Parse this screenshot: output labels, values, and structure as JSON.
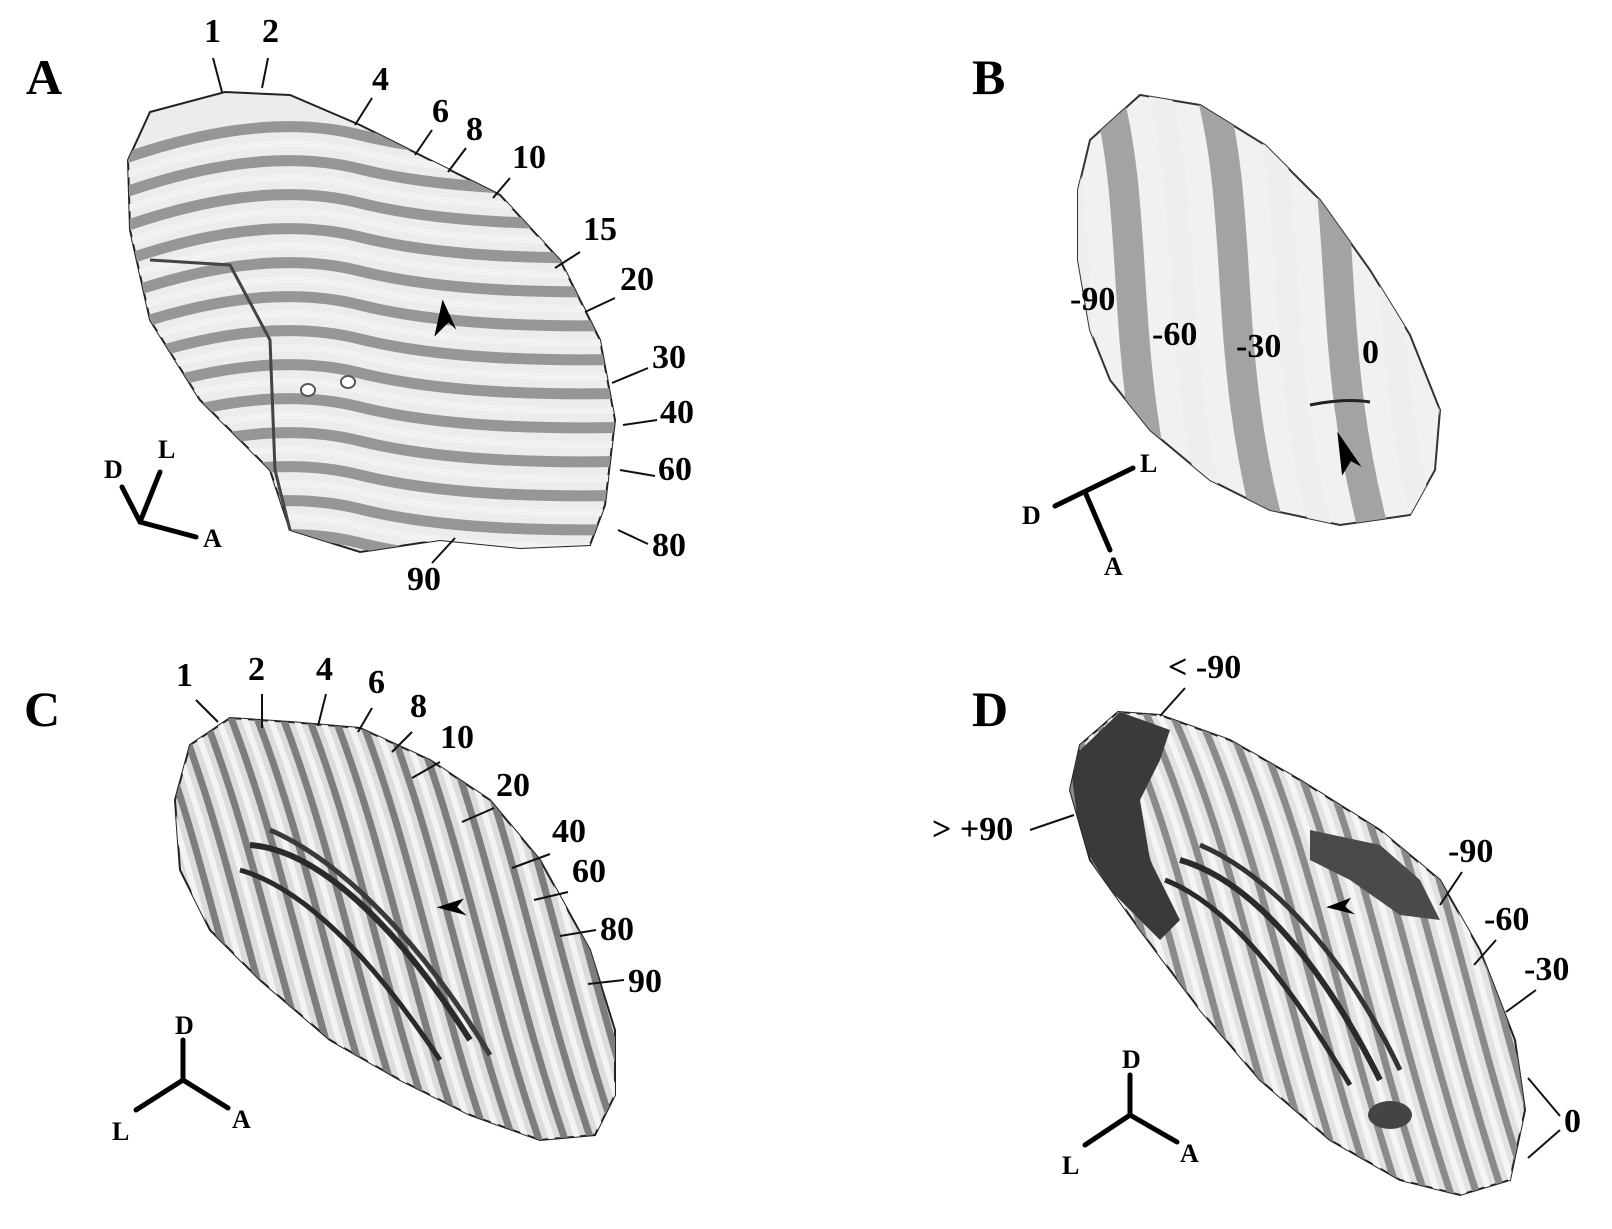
{
  "panels": [
    {
      "letter": "A",
      "contour_labels": [
        "1",
        "2",
        "4",
        "6",
        "8",
        "10",
        "15",
        "20",
        "30",
        "40",
        "60",
        "80",
        "90"
      ],
      "axes": {
        "d": "D",
        "l": "L",
        "a": "A"
      },
      "arrowhead": "arrowhead-icon"
    },
    {
      "letter": "B",
      "contour_labels": [
        "-90",
        "-60",
        "-30",
        "0"
      ],
      "axes": {
        "d": "D",
        "l": "L",
        "a": "A"
      },
      "arrowhead": "arrowhead-icon"
    },
    {
      "letter": "C",
      "contour_labels": [
        "1",
        "2",
        "4",
        "6",
        "8",
        "10",
        "20",
        "40",
        "60",
        "80",
        "90"
      ],
      "axes": {
        "d": "D",
        "l": "L",
        "a": "A"
      },
      "arrowhead": "arrowhead-icon"
    },
    {
      "letter": "D",
      "contour_labels": [
        "< -90",
        "> +90",
        "-90",
        "-60",
        "-30",
        "0"
      ],
      "axes": {
        "d": "D",
        "l": "L",
        "a": "A"
      },
      "arrowhead": "arrowhead-icon"
    }
  ],
  "colors": {
    "background": "#ffffff",
    "surface_light": "#e9e9e9",
    "surface_band": "#9a9a9a",
    "surface_dark": "#3c3c3c",
    "ink": "#111111"
  }
}
